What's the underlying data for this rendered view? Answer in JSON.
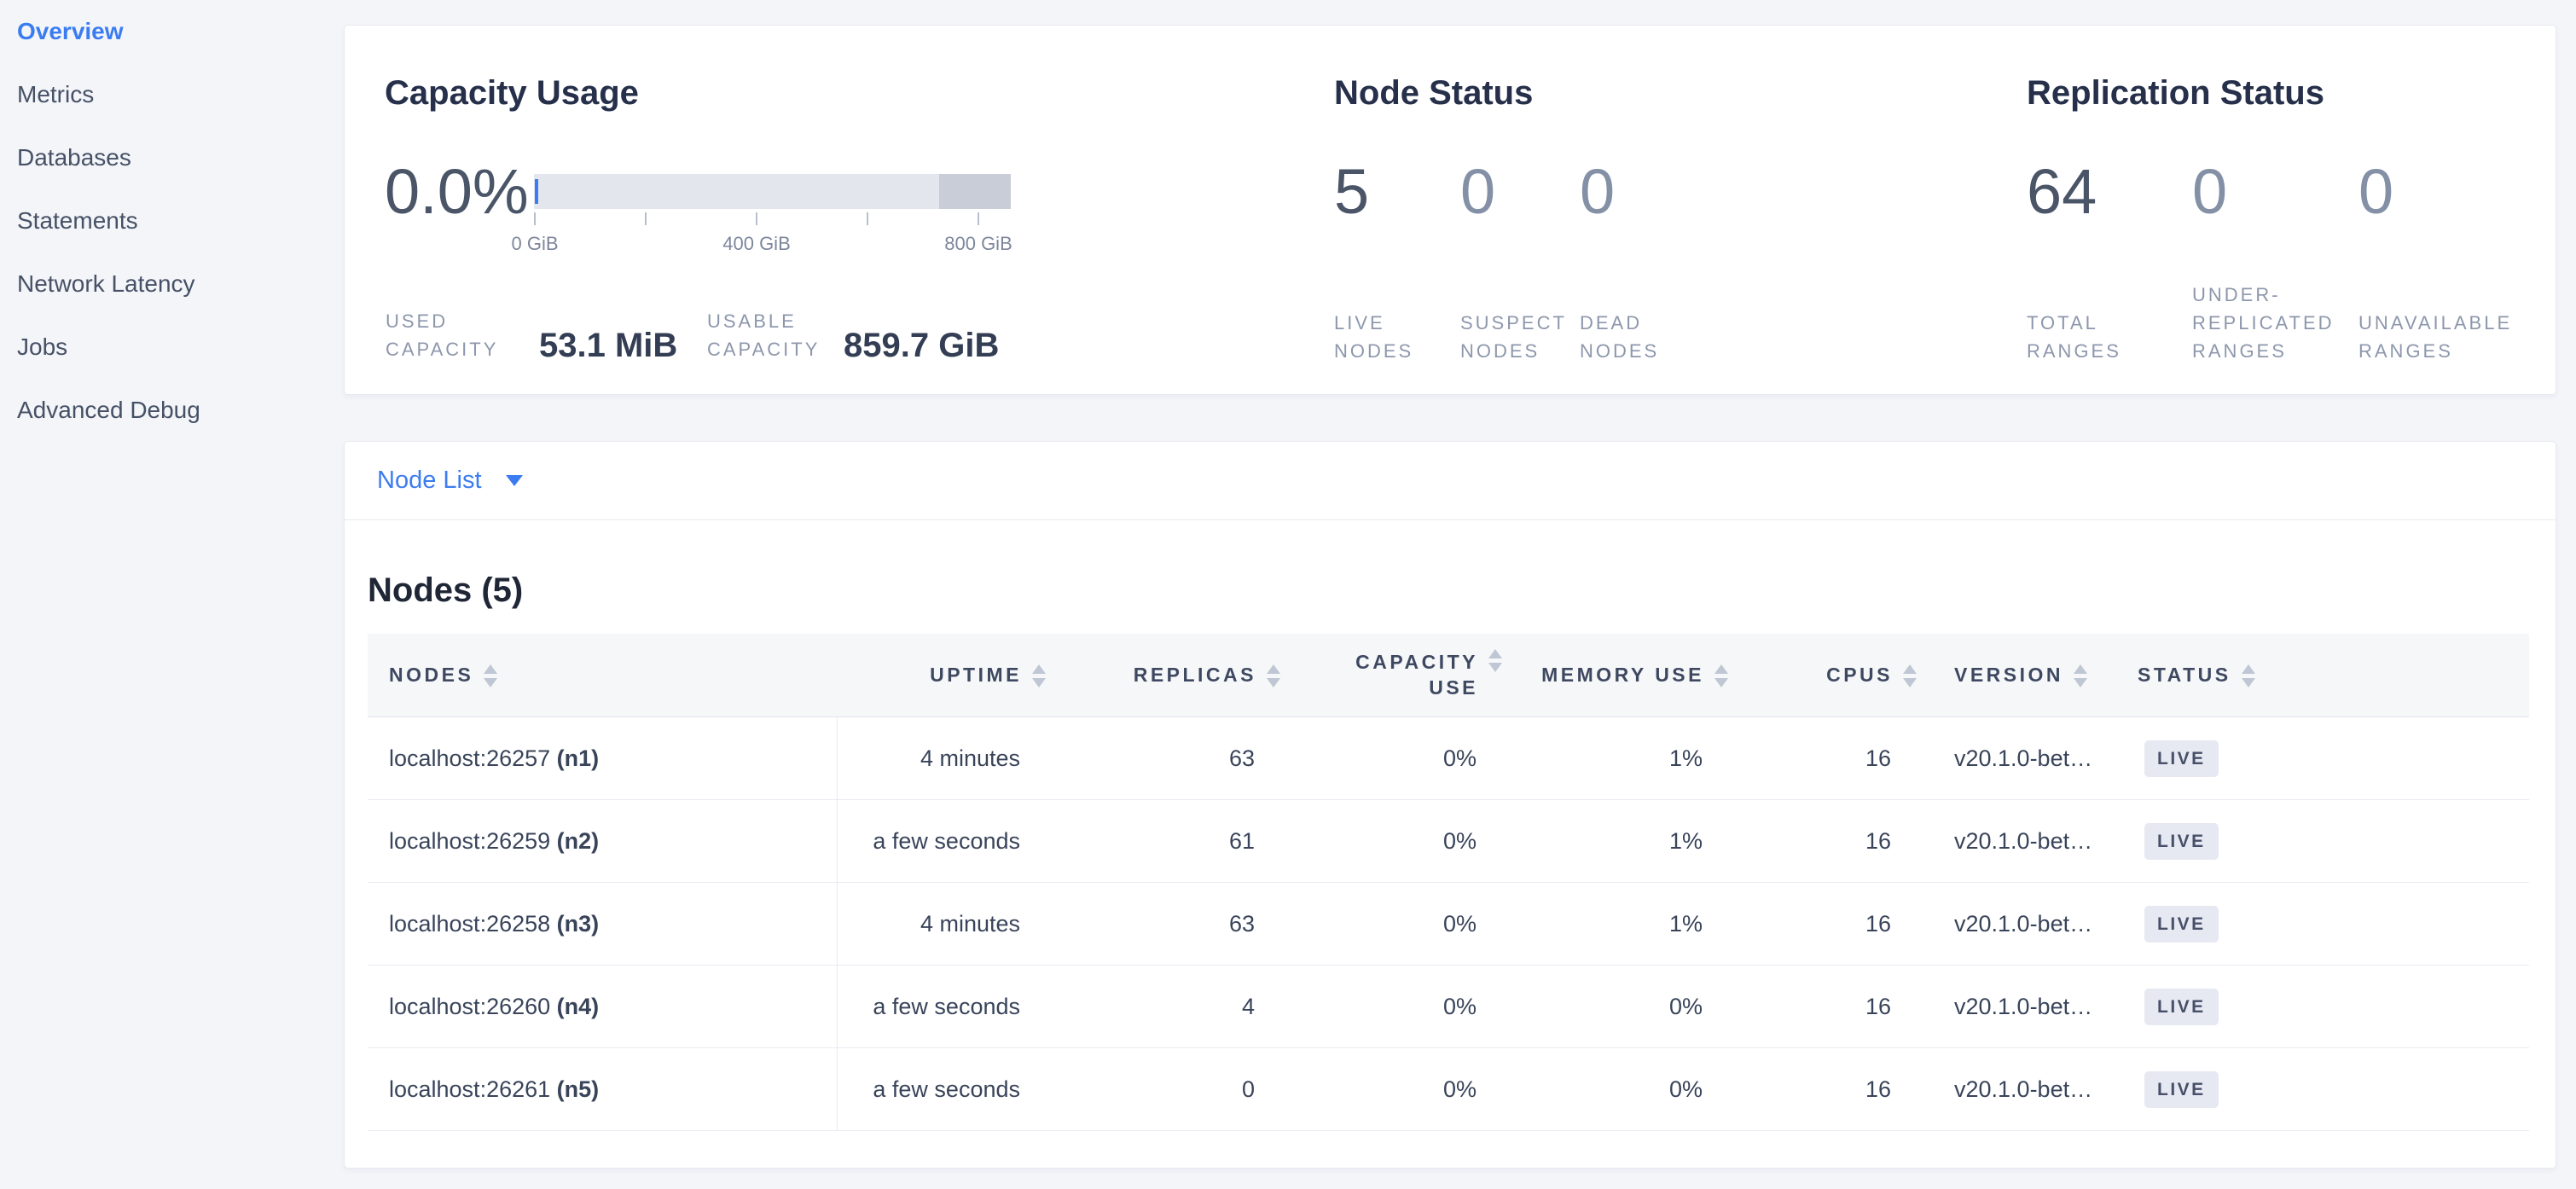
{
  "sidebar": {
    "items": [
      {
        "label": "Overview",
        "active": true
      },
      {
        "label": "Metrics",
        "active": false
      },
      {
        "label": "Databases",
        "active": false
      },
      {
        "label": "Statements",
        "active": false
      },
      {
        "label": "Network Latency",
        "active": false
      },
      {
        "label": "Jobs",
        "active": false
      },
      {
        "label": "Advanced Debug",
        "active": false
      }
    ]
  },
  "capacity_usage": {
    "title": "Capacity Usage",
    "percent": "0.0%",
    "axis_ticks": [
      "0 GiB",
      "400 GiB",
      "800 GiB"
    ],
    "used_label": "USED\nCAPACITY",
    "used_value": "53.1 MiB",
    "usable_label": "USABLE\nCAPACITY",
    "usable_value": "859.7 GiB"
  },
  "node_status": {
    "title": "Node Status",
    "stats": [
      {
        "value": "5",
        "label": "LIVE\nNODES",
        "emphasis": true
      },
      {
        "value": "0",
        "label": "SUSPECT\nNODES",
        "emphasis": false
      },
      {
        "value": "0",
        "label": "DEAD\nNODES",
        "emphasis": false
      }
    ]
  },
  "replication_status": {
    "title": "Replication Status",
    "stats": [
      {
        "value": "64",
        "label": "TOTAL\nRANGES",
        "emphasis": true
      },
      {
        "value": "0",
        "label": "UNDER-\nREPLICATED\nRANGES",
        "emphasis": false
      },
      {
        "value": "0",
        "label": "UNAVAILABLE\nRANGES",
        "emphasis": false
      }
    ]
  },
  "node_list": {
    "label": "Node List",
    "section_title": "Nodes (5)"
  },
  "nodes_table": {
    "columns": [
      "NODES",
      "UPTIME",
      "REPLICAS",
      "CAPACITY USE",
      "MEMORY USE",
      "CPUS",
      "VERSION",
      "STATUS"
    ],
    "rows": [
      {
        "address": "localhost:26257",
        "id": "(n1)",
        "uptime": "4 minutes",
        "replicas": "63",
        "capacity_use": "0%",
        "memory_use": "1%",
        "cpus": "16",
        "version": "v20.1.0-bet…",
        "status": "LIVE"
      },
      {
        "address": "localhost:26259",
        "id": "(n2)",
        "uptime": "a few seconds",
        "replicas": "61",
        "capacity_use": "0%",
        "memory_use": "1%",
        "cpus": "16",
        "version": "v20.1.0-bet…",
        "status": "LIVE"
      },
      {
        "address": "localhost:26258",
        "id": "(n3)",
        "uptime": "4 minutes",
        "replicas": "63",
        "capacity_use": "0%",
        "memory_use": "1%",
        "cpus": "16",
        "version": "v20.1.0-bet…",
        "status": "LIVE"
      },
      {
        "address": "localhost:26260",
        "id": "(n4)",
        "uptime": "a few seconds",
        "replicas": "4",
        "capacity_use": "0%",
        "memory_use": "0%",
        "cpus": "16",
        "version": "v20.1.0-bet…",
        "status": "LIVE"
      },
      {
        "address": "localhost:26261",
        "id": "(n5)",
        "uptime": "a few seconds",
        "replicas": "0",
        "capacity_use": "0%",
        "memory_use": "0%",
        "cpus": "16",
        "version": "v20.1.0-bet…",
        "status": "LIVE"
      }
    ]
  },
  "colors": {
    "accent_blue": "#3b7cf0",
    "gauge_track": "#e4e6ed",
    "gauge_reserved": "#c9cdd7",
    "live_badge_bg": "#e7e9f2",
    "page_background": "#f3f5f9"
  }
}
